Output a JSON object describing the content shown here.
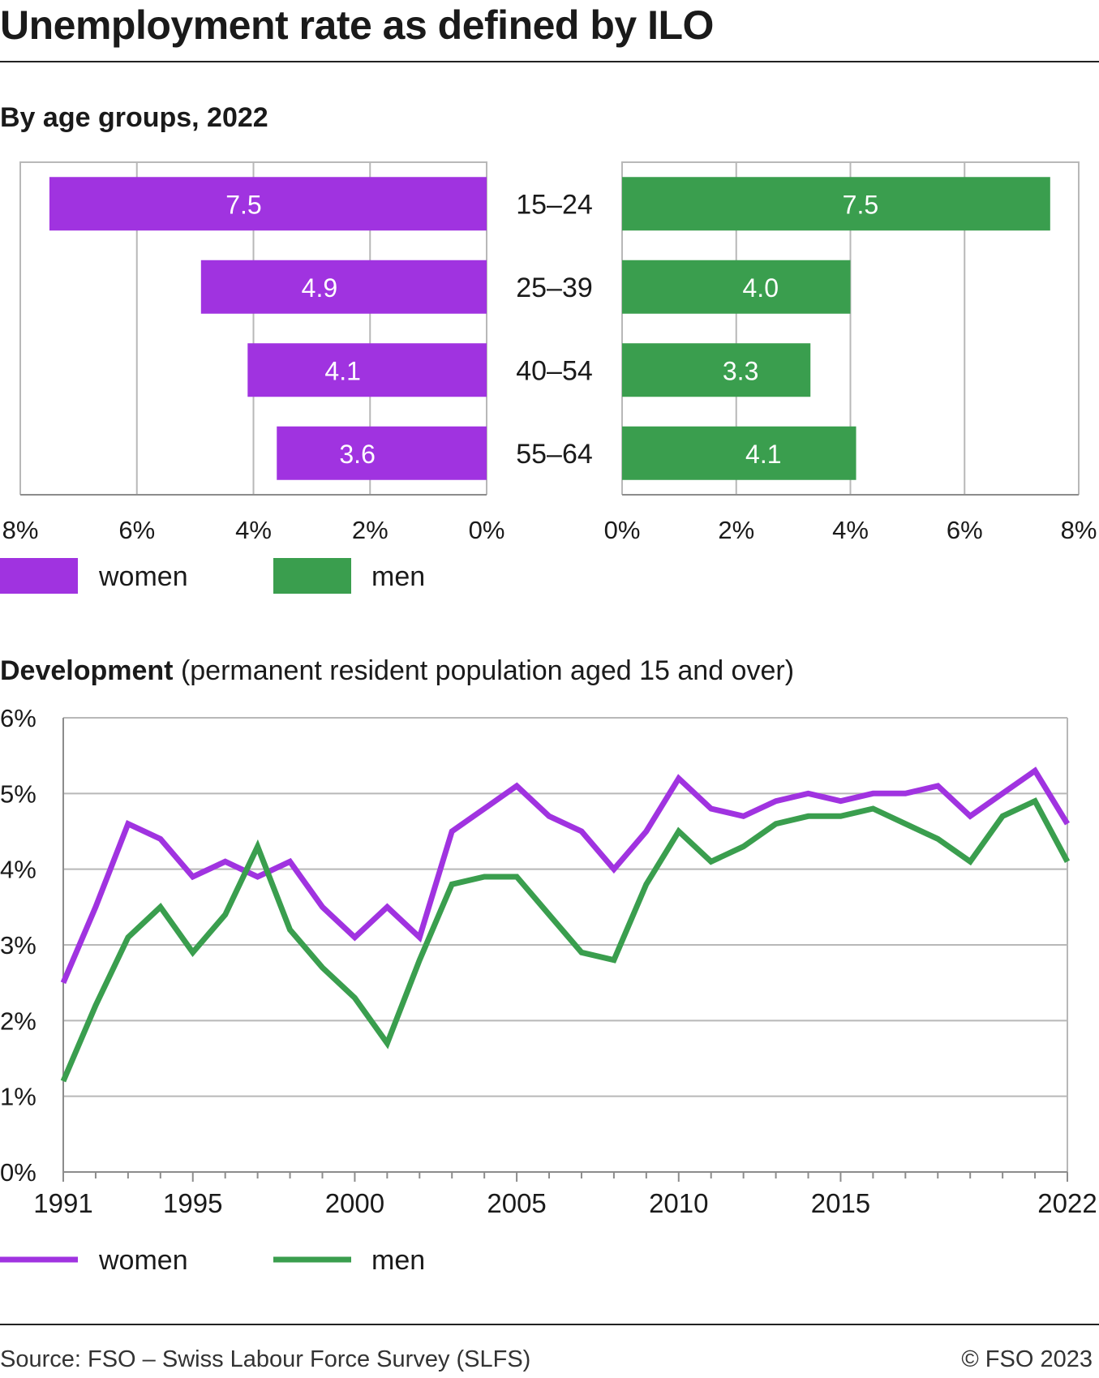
{
  "title": "Unemployment rate as defined by ILO",
  "bar_section": {
    "subtitle": "By age groups, 2022"
  },
  "line_section": {
    "subtitle_bold": "Development",
    "subtitle_note": "(permanent resident population aged 15 and over)"
  },
  "legend": {
    "women": "women",
    "men": "men"
  },
  "footer": {
    "source": "Source: FSO – Swiss Labour Force Survey (SLFS)",
    "copyright": "© FSO 2023"
  },
  "colors": {
    "women": "#A033E0",
    "men": "#3A9E4E",
    "grid": "#b8b8b8",
    "axis": "#8c8c8c"
  },
  "chart_data": [
    {
      "type": "bar",
      "orientation": "horizontal",
      "layout": "butterfly",
      "categories": [
        "15–24",
        "25–39",
        "40–54",
        "55–64"
      ],
      "series": [
        {
          "name": "women",
          "values": [
            7.5,
            4.9,
            4.1,
            3.6
          ]
        },
        {
          "name": "men",
          "values": [
            7.5,
            4.0,
            3.3,
            4.1
          ]
        }
      ],
      "value_labels": {
        "women": [
          "7.5",
          "4.9",
          "4.1",
          "3.6"
        ],
        "men": [
          "7.5",
          "4.0",
          "3.3",
          "4.1"
        ]
      },
      "xlim": [
        0,
        8
      ],
      "ticks": [
        0,
        2,
        4,
        6,
        8
      ],
      "tick_labels": [
        "0%",
        "2%",
        "4%",
        "6%",
        "8%"
      ],
      "grid": true,
      "legend_position": "bottom-left"
    },
    {
      "type": "line",
      "x": [
        1991,
        1992,
        1993,
        1994,
        1995,
        1996,
        1997,
        1998,
        1999,
        2000,
        2001,
        2002,
        2003,
        2004,
        2005,
        2006,
        2007,
        2008,
        2009,
        2010,
        2011,
        2012,
        2013,
        2014,
        2015,
        2016,
        2017,
        2018,
        2019,
        2020,
        2021,
        2022
      ],
      "series": [
        {
          "name": "women",
          "values": [
            2.5,
            3.5,
            4.6,
            4.4,
            3.9,
            4.1,
            3.9,
            4.1,
            3.5,
            3.1,
            3.5,
            3.1,
            4.5,
            4.8,
            5.1,
            4.7,
            4.5,
            4.0,
            4.5,
            5.2,
            4.8,
            4.7,
            4.9,
            5.0,
            4.9,
            5.0,
            5.0,
            5.1,
            4.7,
            5.0,
            5.3,
            4.6
          ]
        },
        {
          "name": "men",
          "values": [
            1.2,
            2.2,
            3.1,
            3.5,
            2.9,
            3.4,
            4.3,
            3.2,
            2.7,
            2.3,
            1.7,
            2.8,
            3.8,
            3.9,
            3.9,
            3.4,
            2.9,
            2.8,
            3.8,
            4.5,
            4.1,
            4.3,
            4.6,
            4.7,
            4.7,
            4.8,
            4.6,
            4.4,
            4.1,
            4.7,
            4.9,
            4.1
          ]
        }
      ],
      "ylim": [
        0,
        6
      ],
      "yticks": [
        0,
        1,
        2,
        3,
        4,
        5,
        6
      ],
      "ytick_labels": [
        "0%",
        "1%",
        "2%",
        "3%",
        "4%",
        "5%",
        "6%"
      ],
      "xtick_labels": [
        "1991",
        "1995",
        "2000",
        "2005",
        "2010",
        "2015",
        "2022"
      ],
      "xlabel_years": [
        1991,
        1995,
        2000,
        2005,
        2010,
        2015,
        2022
      ],
      "grid": true,
      "legend_position": "bottom-left"
    }
  ]
}
